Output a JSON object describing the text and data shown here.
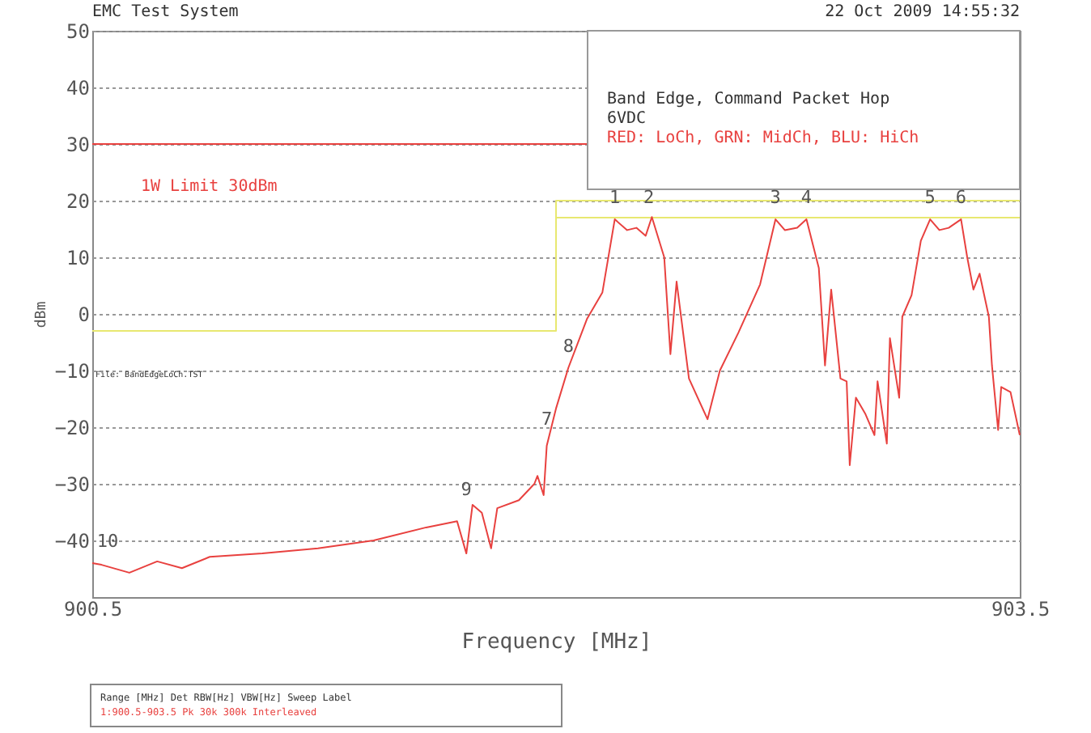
{
  "chart_data": {
    "type": "line",
    "xlabel": "Frequency [MHz]",
    "ylabel": "dBm",
    "xlim": [
      900.5,
      903.5
    ],
    "xticks": [
      900.5,
      903.5
    ],
    "ylim": [
      -50,
      50
    ],
    "yticks": [
      -40,
      -30,
      -20,
      -10,
      0,
      10,
      20,
      30,
      40,
      50
    ],
    "grid": "y",
    "marker": "none",
    "line_style": "solid",
    "series": [
      {
        "color": "#e8e870",
        "x": [
          900.5,
          902.0,
          902.0,
          903.5
        ],
        "values": [
          -3,
          -3,
          20,
          20
        ]
      },
      {
        "color": "#e8e870",
        "x": [
          902.0,
          903.5
        ],
        "values": [
          17,
          17
        ]
      },
      {
        "color": "#e8413f",
        "x": [
          900.5,
          900.53,
          900.62,
          900.71,
          900.79,
          900.88,
          901.05,
          901.23,
          901.41,
          901.58,
          901.68,
          901.71,
          901.73,
          901.76,
          901.79,
          901.81,
          901.88,
          901.93,
          901.94,
          901.96,
          901.97,
          902.0,
          902.04,
          902.1,
          902.15,
          902.19,
          902.23,
          902.26,
          902.29,
          902.31,
          902.35,
          902.37,
          902.39,
          902.43,
          902.49,
          902.53,
          902.59,
          902.66,
          902.71,
          902.74,
          902.78,
          902.81,
          902.85,
          902.87,
          902.89,
          902.92,
          902.94,
          902.95,
          902.97,
          903.0,
          903.03,
          903.04,
          903.07,
          903.08,
          903.11,
          903.12,
          903.15,
          903.18,
          903.21,
          903.24,
          903.27,
          903.31,
          903.33,
          903.35,
          903.37,
          903.4,
          903.41,
          903.43,
          903.44,
          903.47,
          903.5
        ],
        "values": [
          -44,
          -44.3,
          -45.7,
          -43.7,
          -44.9,
          -42.9,
          -42.3,
          -41.4,
          -40,
          -37.7,
          -36.6,
          -42.3,
          -33.7,
          -35.1,
          -41.4,
          -34.3,
          -32.9,
          -30,
          -28.6,
          -32,
          -23.3,
          -16.7,
          -9.5,
          -0.9,
          3.8,
          16.7,
          14.8,
          15.2,
          13.8,
          17.1,
          10,
          -7.1,
          5.7,
          -11.4,
          -18.6,
          -10,
          -3.3,
          5.2,
          16.7,
          14.8,
          15.2,
          16.7,
          8.1,
          -9.1,
          4.3,
          -11.4,
          -11.9,
          -26.7,
          -14.8,
          -17.6,
          -21.4,
          -11.9,
          -22.9,
          -4.3,
          -14.8,
          -0.5,
          3.3,
          12.9,
          16.7,
          14.8,
          15.2,
          16.7,
          10,
          4.3,
          7.1,
          -0.5,
          -9.1,
          -20.5,
          -12.9,
          -13.8,
          -21.4
        ]
      }
    ],
    "ref_lines": [
      {
        "axis": "y",
        "value": 30,
        "label": "1W Limit    30dBm",
        "color": "#e8413f"
      }
    ],
    "annotations": [
      "EMC Test System",
      "22 Oct 2009    14:55:32",
      "Band Edge, Command Packet Hop",
      "6VDC",
      "RED: LoCh, GRN: MidCh, BLU: HiCh",
      "File: BandEdgeLoCh.TST",
      "Range [MHz]      Det    RBW[Hz]   VBW[Hz]    Sweep        Label",
      "1:900.5-903.5         Pk       30k        300k      Interleaved",
      {
        "text": "1",
        "x": 902.19,
        "y": 16.7
      },
      {
        "text": "2",
        "x": 902.3,
        "y": 16.7
      },
      {
        "text": "3",
        "x": 902.71,
        "y": 16.7
      },
      {
        "text": "4",
        "x": 902.81,
        "y": 16.7
      },
      {
        "text": "5",
        "x": 903.21,
        "y": 16.7
      },
      {
        "text": "6",
        "x": 903.31,
        "y": 16.7
      },
      {
        "text": "7",
        "x": 901.97,
        "y": -22.4
      },
      {
        "text": "8",
        "x": 902.04,
        "y": -9.5
      },
      {
        "text": "9",
        "x": 901.71,
        "y": -34.8
      },
      {
        "text": "10",
        "x": 900.55,
        "y": -44
      }
    ]
  }
}
